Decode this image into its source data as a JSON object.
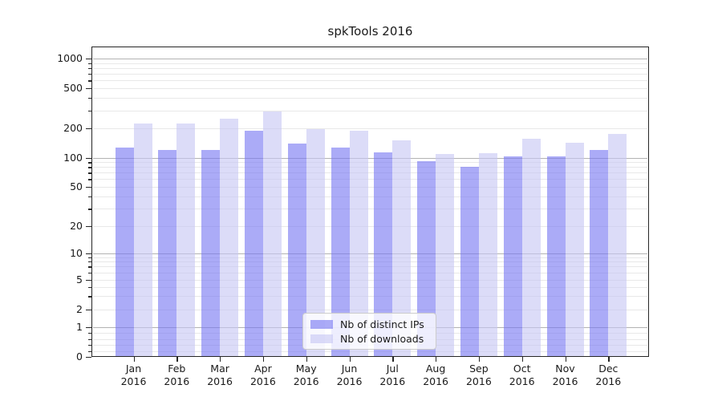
{
  "title": "spkTools 2016",
  "colors": {
    "distinct_ips_bar": "rgba(119,119,242,0.62)",
    "distinct_ips_hex": "#abaaf6",
    "downloads_bar": "rgba(198,198,244,0.62)",
    "downloads_hex": "#dcdcf8",
    "grid_major": "#b3b3b3",
    "grid_minor": "#e8e8e8",
    "axis": "#262626",
    "text": "#1a1a1a"
  },
  "chart_data": {
    "type": "bar",
    "title": "spkTools 2016",
    "categories": [
      "Jan",
      "Feb",
      "Mar",
      "Apr",
      "May",
      "Jun",
      "Jul",
      "Aug",
      "Sep",
      "Oct",
      "Nov",
      "Dec"
    ],
    "year": "2016",
    "series": [
      {
        "name": "Nb of distinct IPs",
        "values": [
          128,
          121,
          121,
          190,
          139,
          128,
          114,
          93,
          80,
          104,
          103,
          121
        ]
      },
      {
        "name": "Nb of downloads",
        "values": [
          225,
          225,
          250,
          295,
          196,
          190,
          152,
          110,
          112,
          155,
          142,
          175
        ]
      }
    ],
    "y_axis": {
      "scale": "symlog",
      "ticks": [
        0,
        1,
        2,
        5,
        10,
        20,
        50,
        100,
        200,
        500,
        1000
      ],
      "range": [
        0,
        1000
      ]
    },
    "x_axis_tick_format": "Month over year, two lines",
    "grid": "horizontal major and minor gridlines",
    "legend_position": "lower center inside plot"
  },
  "legend": {
    "items": [
      {
        "label": "Nb of distinct IPs"
      },
      {
        "label": "Nb of downloads"
      }
    ]
  }
}
